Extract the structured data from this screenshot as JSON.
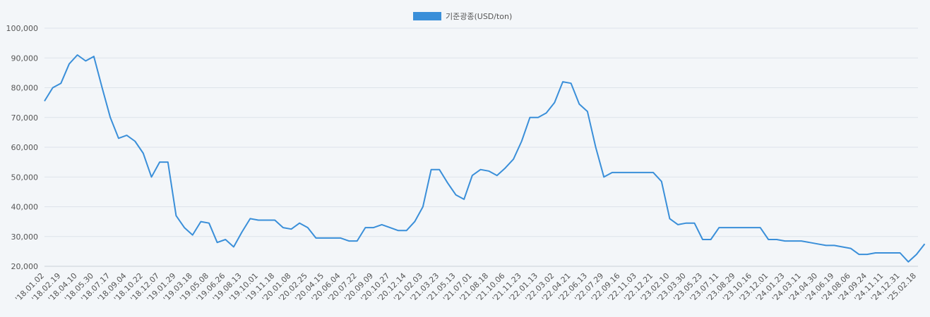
{
  "chart_data": {
    "type": "line",
    "legend": "top",
    "series": [
      {
        "name": "기준광종(USD/ton)",
        "color": "#3a8fd9",
        "values": [
          75500,
          80000,
          81500,
          88000,
          91000,
          89000,
          90500,
          80000,
          70000,
          63000,
          64000,
          62000,
          58000,
          50000,
          55000,
          55000,
          37000,
          33000,
          30500,
          35000,
          34500,
          28000,
          29000,
          26500,
          31500,
          36000,
          35500,
          35500,
          35500,
          33000,
          32500,
          34500,
          33000,
          29500,
          29500,
          29500,
          29500,
          28500,
          28500,
          33000,
          33000,
          34000,
          33000,
          32000,
          32000,
          35000,
          40000,
          52500,
          52500,
          48000,
          44000,
          42500,
          50500,
          52500,
          52000,
          50500,
          53000,
          56000,
          62000,
          70000,
          70000,
          71500,
          75000,
          82000,
          81500,
          74500,
          72000,
          60000,
          50000,
          51500,
          51500,
          51500,
          51500,
          51500,
          51500,
          48500,
          36000,
          34000,
          34500,
          34500,
          29000,
          29000,
          33000,
          33000,
          33000,
          33000,
          33000,
          33000,
          29000,
          29000,
          28500,
          28500,
          28500,
          28000,
          27500,
          27000,
          27000,
          26500,
          26000,
          24000,
          24000,
          24500,
          24500,
          24500,
          24500,
          21500,
          24000,
          27500
        ]
      }
    ],
    "categories": [
      "'18.01.02",
      null,
      "'18.02.19",
      null,
      "'18.04.10",
      null,
      "'18.05.30",
      null,
      "'18.07.17",
      null,
      "'18.09.04",
      null,
      "'18.10.22",
      null,
      "'18.12.07",
      null,
      "'19.01.29",
      null,
      "'19.03.18",
      null,
      "'19.05.08",
      null,
      "'19.06.26",
      null,
      "'19.08.13",
      null,
      "'19.10.01",
      null,
      "'19.11.18",
      null,
      "'20.01.08",
      null,
      "'20.02.25",
      null,
      "'20.04.15",
      null,
      "'20.06.04",
      null,
      "'20.07.22",
      null,
      "'20.09.09",
      null,
      "'20.10.27",
      null,
      "'20.12.14",
      null,
      "'21.02.03",
      null,
      "'21.03.23",
      null,
      "'21.05.13",
      null,
      "'21.07.01",
      null,
      "'21.08.18",
      null,
      "'21.10.06",
      null,
      "'21.11.23",
      null,
      "'22.01.13",
      null,
      "'22.03.02",
      null,
      "'22.04.21",
      null,
      "'22.06.13",
      null,
      "'22.07.29",
      null,
      "'22.09.16",
      null,
      "'22.11.03",
      null,
      "'22.12.21",
      null,
      "'23.02.10",
      null,
      "'23.03.30",
      null,
      "'23.05.23",
      null,
      "'23.07.11",
      null,
      "'23.08.29",
      null,
      "'23.10.16",
      null,
      "'23.12.01",
      null,
      "'24.01.23",
      null,
      "'24.03.11",
      null,
      "'24.04.30",
      null,
      "'24.06.19",
      null,
      "'24.08.06",
      null,
      "'24.09.24",
      null,
      "'24.11.11",
      null,
      "'24.12.31",
      null,
      "'25.02.18",
      null
    ],
    "ylim": [
      20000,
      100000
    ],
    "yticks": [
      {
        "value": 20000,
        "label": "20,000"
      },
      {
        "value": 30000,
        "label": "30,000"
      },
      {
        "value": 40000,
        "label": "40,000"
      },
      {
        "value": 50000,
        "label": "50,000"
      },
      {
        "value": 60000,
        "label": "60,000"
      },
      {
        "value": 70000,
        "label": "70,000"
      },
      {
        "value": 80000,
        "label": "80,000"
      },
      {
        "value": 90000,
        "label": "90,000"
      },
      {
        "value": 100000,
        "label": "100,000"
      }
    ],
    "grid": true
  }
}
